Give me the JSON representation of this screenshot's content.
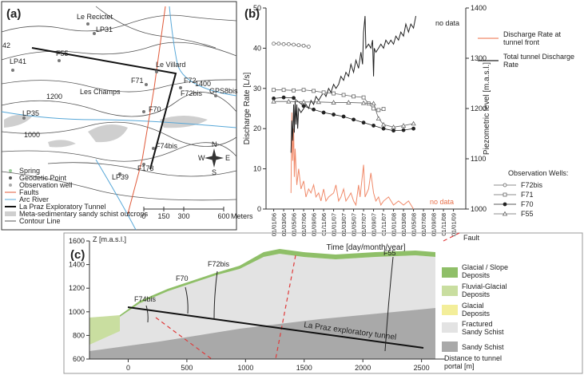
{
  "map": {
    "label": "(a)",
    "places": [
      "Le Recictet",
      "LP31",
      "42",
      "F55",
      "LP41",
      "Le Villard",
      "F71",
      "F72",
      "1400",
      "F72bis",
      "GPS8bis",
      "1200",
      "Les Champs",
      "F70",
      "LP35",
      "1000",
      "F74bis",
      "F173",
      "LP39"
    ],
    "compass": [
      "N",
      "E",
      "S",
      "W"
    ],
    "legend": [
      "Spring",
      "Geodetic Point",
      "Observation well",
      "Faults",
      "Arc River",
      "La Praz Exploratory Tunnel",
      "Meta-sedimentary sandy schist outcrops",
      "Contour Line"
    ],
    "scale": {
      "ticks": [
        0,
        150,
        300,
        600
      ],
      "unit": "Meters"
    }
  },
  "chart_data": {
    "type": "line",
    "label": "(b)",
    "ylabel": "Discharge Rate [L/s]",
    "y2label": "Piezometric level [m.a.s.l.]",
    "xlabel": "Time [day/month/year]",
    "annotations": [
      "no data",
      "no data"
    ],
    "legend_title": "Observation Wells:",
    "xlim": [
      "15/11/05",
      "15/03/09"
    ],
    "xticks": [
      "01/01/06",
      "01/03/06",
      "01/05/06",
      "01/07/06",
      "01/09/06",
      "01/11/06",
      "01/01/07",
      "01/03/07",
      "01/05/07",
      "01/07/07",
      "01/09/07",
      "01/11/07",
      "01/01/08",
      "01/03/08",
      "01/05/08",
      "01/07/08",
      "01/09/08",
      "01/11/08",
      "01/01/09"
    ],
    "ylim": [
      0,
      50
    ],
    "yticks": [
      0,
      10,
      20,
      30,
      40,
      50
    ],
    "y2lim": [
      1000,
      1400
    ],
    "y2ticks": [
      1000,
      1100,
      1200,
      1300,
      1400
    ],
    "series": [
      {
        "name": "Discharge Rate at tunnel front",
        "color": "#f08a6a",
        "x": [
          "15/04/06",
          "20/04/06",
          "25/04/06",
          "01/05/06",
          "05/05/06",
          "10/05/06",
          "20/05/06",
          "01/06/06",
          "15/06/06",
          "01/07/06",
          "15/07/06",
          "01/08/06",
          "15/08/06",
          "01/09/06",
          "15/09/06",
          "01/10/06",
          "15/10/06",
          "01/11/06",
          "15/11/06",
          "01/12/06",
          "01/01/07",
          "15/01/07",
          "01/02/07",
          "15/02/07",
          "01/03/07",
          "15/03/07",
          "01/04/07",
          "15/04/07",
          "01/05/07",
          "15/05/07",
          "01/06/07",
          "10/06/07",
          "01/07/07",
          "10/07/07",
          "01/08/07",
          "15/08/07",
          "01/09/07",
          "15/09/07",
          "01/10/07",
          "15/10/07",
          "01/11/07",
          "01/12/07",
          "01/01/08",
          "01/02/08",
          "01/03/08",
          "01/04/08",
          "01/05/08"
        ],
        "values": [
          4,
          24,
          12,
          20,
          8,
          15,
          6,
          10,
          5,
          7,
          3,
          5,
          4,
          6,
          3,
          4,
          2,
          5,
          2,
          3,
          4,
          6,
          2,
          3,
          5,
          2,
          3,
          4,
          2,
          1,
          6,
          3,
          11,
          3,
          5,
          9,
          4,
          2,
          3,
          1,
          2,
          3,
          1,
          2,
          1,
          2,
          0
        ]
      },
      {
        "name": "Total tunnel Discharge Rate",
        "color": "#222222",
        "x": [
          "15/04/06",
          "20/04/06",
          "25/04/06",
          "01/05/06",
          "05/05/06",
          "10/05/06",
          "15/05/06",
          "20/05/06",
          "25/05/06",
          "01/06/06",
          "15/06/06",
          "01/07/06",
          "15/07/06",
          "01/08/06",
          "15/08/06",
          "01/09/06",
          "15/09/06",
          "01/10/06",
          "15/10/06",
          "01/11/06",
          "15/11/06",
          "01/12/06",
          "15/12/06",
          "01/01/07",
          "15/01/07",
          "01/02/07",
          "15/02/07",
          "01/03/07",
          "15/03/07",
          "01/04/07",
          "15/04/07",
          "01/05/07",
          "15/05/07",
          "01/06/07",
          "15/06/07",
          "25/06/07",
          "01/07/07",
          "10/07/07",
          "15/07/07",
          "01/08/07",
          "15/08/07",
          "25/08/07",
          "01/09/07",
          "05/09/07",
          "15/09/07",
          "01/10/07",
          "15/10/07",
          "01/11/07",
          "15/11/07",
          "01/12/07",
          "15/12/07",
          "01/01/08",
          "15/01/08",
          "01/02/08",
          "15/02/08",
          "01/03/08",
          "15/03/08",
          "01/04/08",
          "15/04/08",
          "01/05/08",
          "15/05/08"
        ],
        "values": [
          14,
          22,
          17,
          26,
          19,
          27,
          21,
          26,
          20,
          25,
          24,
          25,
          26,
          25,
          27,
          26,
          28,
          27,
          28,
          29,
          28,
          30,
          29,
          31,
          30,
          31,
          33,
          32,
          34,
          33,
          36,
          34,
          37,
          35,
          39,
          36,
          44,
          48,
          40,
          41,
          40,
          42,
          33,
          40,
          39,
          40,
          41,
          40,
          42,
          41,
          42,
          41,
          43,
          42,
          44,
          43,
          46,
          44,
          46,
          45,
          48
        ]
      },
      {
        "name": "F72bis",
        "color": "#666666",
        "axis": "y2",
        "marker": "circle-open",
        "x": [
          "01/01/06",
          "01/02/06",
          "01/03/06",
          "01/04/06",
          "01/05/06",
          "01/06/06",
          "01/07/06",
          "01/08/06"
        ],
        "values": [
          1329,
          1329,
          1328,
          1328,
          1327,
          1326,
          1325,
          1323
        ]
      },
      {
        "name": "F71",
        "color": "#666666",
        "axis": "y2",
        "marker": "square-open",
        "x": [
          "01/01/06",
          "01/03/06",
          "01/05/06",
          "01/07/06",
          "01/09/06",
          "01/11/06",
          "01/01/07",
          "01/03/07",
          "01/05/07",
          "01/07/07",
          "01/08/07",
          "01/09/07",
          "01/10/07",
          "01/11/07"
        ],
        "values": [
          1237,
          1237,
          1236,
          1237,
          1235,
          1232,
          1230,
          1227,
          1224,
          1222,
          1210,
          1200,
          1197,
          1199
        ]
      },
      {
        "name": "F70",
        "color": "#222222",
        "axis": "y2",
        "marker": "circle-filled",
        "x": [
          "01/01/06",
          "01/03/06",
          "01/05/06",
          "01/07/06",
          "01/09/06",
          "01/11/06",
          "01/01/07",
          "01/03/07",
          "01/05/07",
          "01/07/07",
          "01/09/07",
          "01/11/07",
          "01/01/08",
          "01/03/08",
          "01/05/08"
        ],
        "values": [
          1220,
          1222,
          1221,
          1205,
          1198,
          1192,
          1188,
          1184,
          1178,
          1172,
          1166,
          1160,
          1156,
          1157,
          1160
        ]
      },
      {
        "name": "F55",
        "color": "#666666",
        "axis": "y2",
        "marker": "triangle-open",
        "x": [
          "01/01/06",
          "01/04/06",
          "01/07/06",
          "01/10/06",
          "01/01/07",
          "01/04/07",
          "01/07/07",
          "01/09/07",
          "01/10/07",
          "01/11/07",
          "01/01/08",
          "01/03/08",
          "01/05/08"
        ],
        "values": [
          1214,
          1214,
          1213,
          1213,
          1212,
          1212,
          1211,
          1210,
          1180,
          1168,
          1163,
          1166,
          1170
        ]
      }
    ]
  },
  "section": {
    "label": "(c)",
    "ylabel": "Z [m.a.s.l.]",
    "xlabel": "Distance to tunnel portal [m]",
    "xlim": [
      -330,
      2700
    ],
    "ylim": [
      600,
      1600
    ],
    "xticks": [
      0,
      500,
      1000,
      1500,
      2000,
      2500
    ],
    "yticks": [
      600,
      800,
      1000,
      1200,
      1400,
      1600
    ],
    "wells": [
      "F74bis",
      "F70",
      "F72bis",
      "F55"
    ],
    "tunnel_label": "La Praz exploratory tunnel",
    "legend": [
      "Fault",
      "Glacial / Slope Deposits",
      "Fluvial-Glacial Deposits",
      "Glacial Deposits",
      "Fractured Sandy Schist",
      "Sandy Schist"
    ]
  }
}
